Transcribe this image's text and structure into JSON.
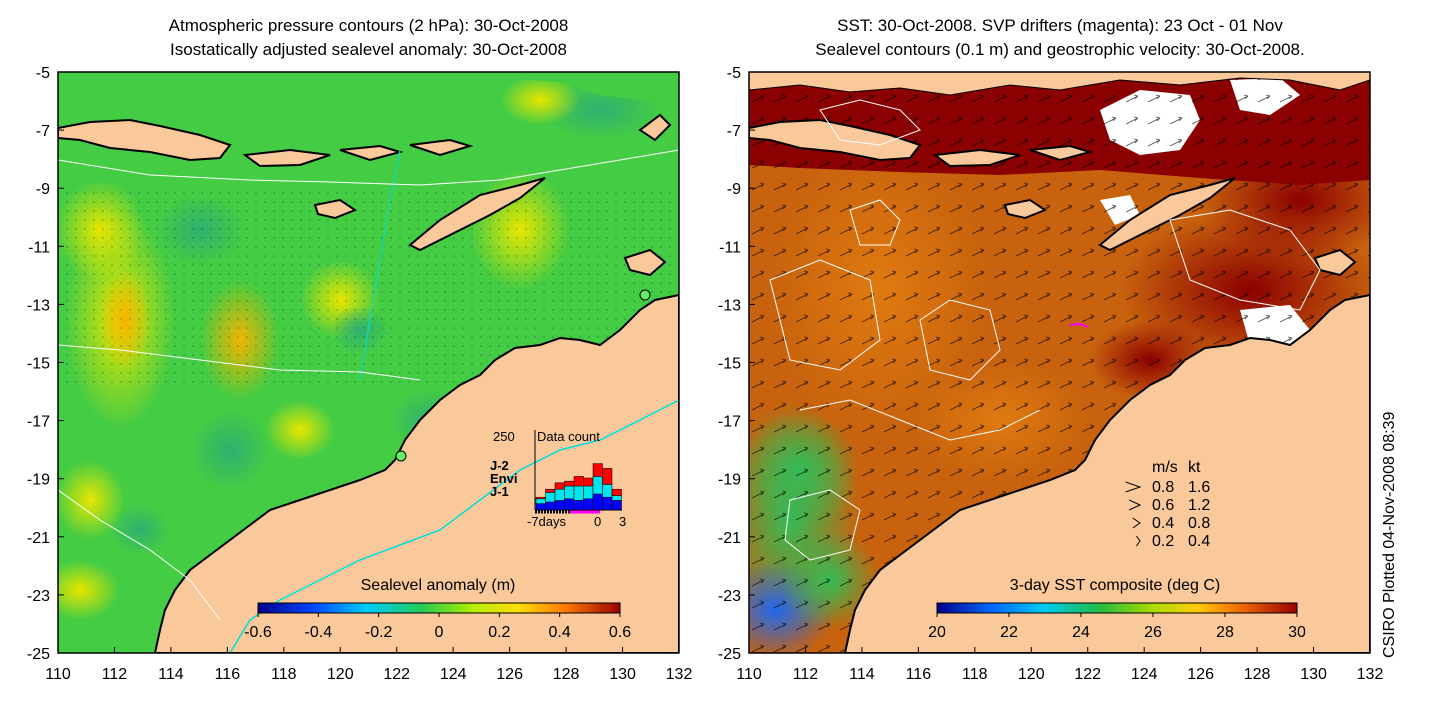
{
  "left_panel": {
    "title_line1": "Atmospheric pressure contours (2 hPa): 30-Oct-2008",
    "title_line2": "Isostatically adjusted sealevel anomaly: 30-Oct-2008",
    "colorbar_label": "Sealevel anomaly (m)",
    "colorbar_ticks": [
      "-0.6",
      "-0.4",
      "-0.2",
      "0",
      "0.2",
      "0.4",
      "0.6"
    ],
    "inset": {
      "title": "Data count",
      "ymax": "250",
      "xlabel_left": "-7days",
      "xlabel_mid": "0",
      "xlabel_right": "3",
      "legend": [
        {
          "label": "J-2",
          "color": "#ff0000"
        },
        {
          "label": "Envi",
          "color": "#00e5ee"
        },
        {
          "label": "J-1",
          "color": "#0000ff"
        }
      ],
      "bars": [
        {
          "j1": 20,
          "envi": 15,
          "j2": 5
        },
        {
          "j1": 25,
          "envi": 30,
          "j2": 10
        },
        {
          "j1": 30,
          "envi": 35,
          "j2": 20
        },
        {
          "j1": 35,
          "envi": 40,
          "j2": 15
        },
        {
          "j1": 30,
          "envi": 45,
          "j2": 30
        },
        {
          "j1": 35,
          "envi": 40,
          "j2": 25
        },
        {
          "j1": 50,
          "envi": 55,
          "j2": 40
        },
        {
          "j1": 40,
          "envi": 40,
          "j2": 50
        },
        {
          "j1": 30,
          "envi": 15,
          "j2": 20
        }
      ]
    }
  },
  "right_panel": {
    "title_line1": "SST: 30-Oct-2008. SVP drifters (magenta): 23 Oct - 01 Nov",
    "title_line2": "Sealevel contours (0.1 m) and geostrophic velocity: 30-Oct-2008.",
    "colorbar_label": "3-day SST composite (deg C)",
    "colorbar_ticks": [
      "20",
      "22",
      "24",
      "26",
      "28",
      "30"
    ],
    "velocity_legend": {
      "header_ms": "m/s",
      "header_kt": "kt",
      "rows": [
        {
          "ms": "0.8",
          "kt": "1.6"
        },
        {
          "ms": "0.6",
          "kt": "1.2"
        },
        {
          "ms": "0.4",
          "kt": "0.8"
        },
        {
          "ms": "0.2",
          "kt": "0.4"
        }
      ]
    }
  },
  "axes": {
    "x_ticks": [
      "110",
      "112",
      "114",
      "116",
      "118",
      "120",
      "122",
      "124",
      "126",
      "128",
      "130",
      "132"
    ],
    "y_ticks": [
      "-5",
      "-7",
      "-9",
      "-11",
      "-13",
      "-15",
      "-17",
      "-19",
      "-21",
      "-23",
      "-25"
    ]
  },
  "credit": "CSIRO Plotted 04-Nov-2008 08:39",
  "colors": {
    "land": "#f9c89b",
    "sla_base": "#4fd24f",
    "sst_base": "#c85a14",
    "sst_hot": "#8b0000"
  }
}
